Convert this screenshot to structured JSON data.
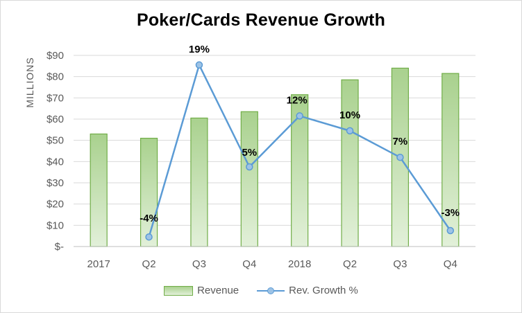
{
  "chart_data": {
    "type": "bar",
    "title": "Poker/Cards  Revenue Growth",
    "ylabel": "MILLIONS",
    "xlabel": "",
    "ylim": [
      0,
      90
    ],
    "yticks": [
      0,
      10,
      20,
      30,
      40,
      50,
      60,
      70,
      80,
      90
    ],
    "ytick_labels": [
      "$-",
      "$10",
      "$20",
      "$30",
      "$40",
      "$50",
      "$60",
      "$70",
      "$80",
      "$90"
    ],
    "categories": [
      "2017",
      "Q2",
      "Q3",
      "Q4",
      "2018",
      "Q2",
      "Q3",
      "Q4"
    ],
    "grid": true,
    "legend_position": "bottom",
    "series": [
      {
        "name": "Revenue",
        "type": "bar",
        "values": [
          53,
          51,
          60.5,
          63.5,
          71.5,
          78.5,
          84,
          81.5
        ],
        "color": "#70ad47"
      },
      {
        "name": "Rev. Growth %",
        "type": "line",
        "values": [
          null,
          4.5,
          85.5,
          37.5,
          61.5,
          54.5,
          42,
          7.5
        ],
        "data_labels": [
          null,
          "-4%",
          "19%",
          "5%",
          "12%",
          "10%",
          "7%",
          "-3%"
        ],
        "color": "#5b9bd5"
      }
    ]
  }
}
